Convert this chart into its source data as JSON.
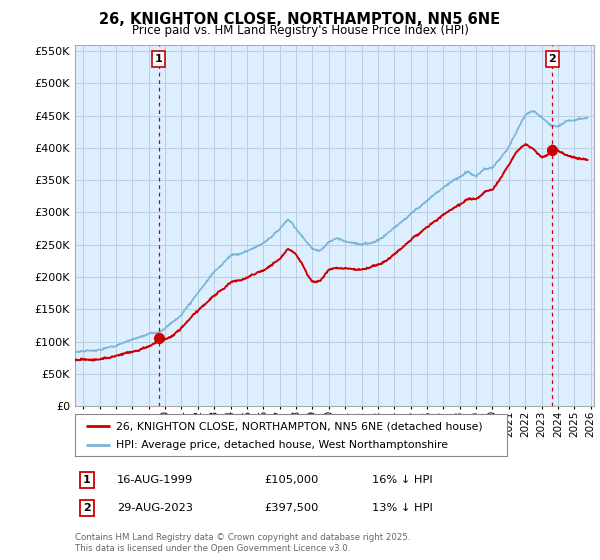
{
  "title": "26, KNIGHTON CLOSE, NORTHAMPTON, NN5 6NE",
  "subtitle": "Price paid vs. HM Land Registry's House Price Index (HPI)",
  "ylim": [
    0,
    560000
  ],
  "xlim": [
    1994.5,
    2026.2
  ],
  "yticks": [
    0,
    50000,
    100000,
    150000,
    200000,
    250000,
    300000,
    350000,
    400000,
    450000,
    500000,
    550000
  ],
  "xtick_years": [
    1995,
    1996,
    1997,
    1998,
    1999,
    2000,
    2001,
    2002,
    2003,
    2004,
    2005,
    2006,
    2007,
    2008,
    2009,
    2010,
    2011,
    2012,
    2013,
    2014,
    2015,
    2016,
    2017,
    2018,
    2019,
    2020,
    2021,
    2022,
    2023,
    2024,
    2025,
    2026
  ],
  "hpi_color": "#7ab4d8",
  "price_color": "#cc0000",
  "marker1_year": 1999.62,
  "marker2_year": 2023.65,
  "marker1_price": 105000,
  "marker2_price": 397500,
  "vline_color": "#cc0000",
  "chart_bg_color": "#ddeeff",
  "background_color": "#ffffff",
  "grid_color": "#b8cfe0",
  "legend_label_red": "26, KNIGHTON CLOSE, NORTHAMPTON, NN5 6NE (detached house)",
  "legend_label_blue": "HPI: Average price, detached house, West Northamptonshire",
  "footnote": "Contains HM Land Registry data © Crown copyright and database right 2025.\nThis data is licensed under the Open Government Licence v3.0."
}
